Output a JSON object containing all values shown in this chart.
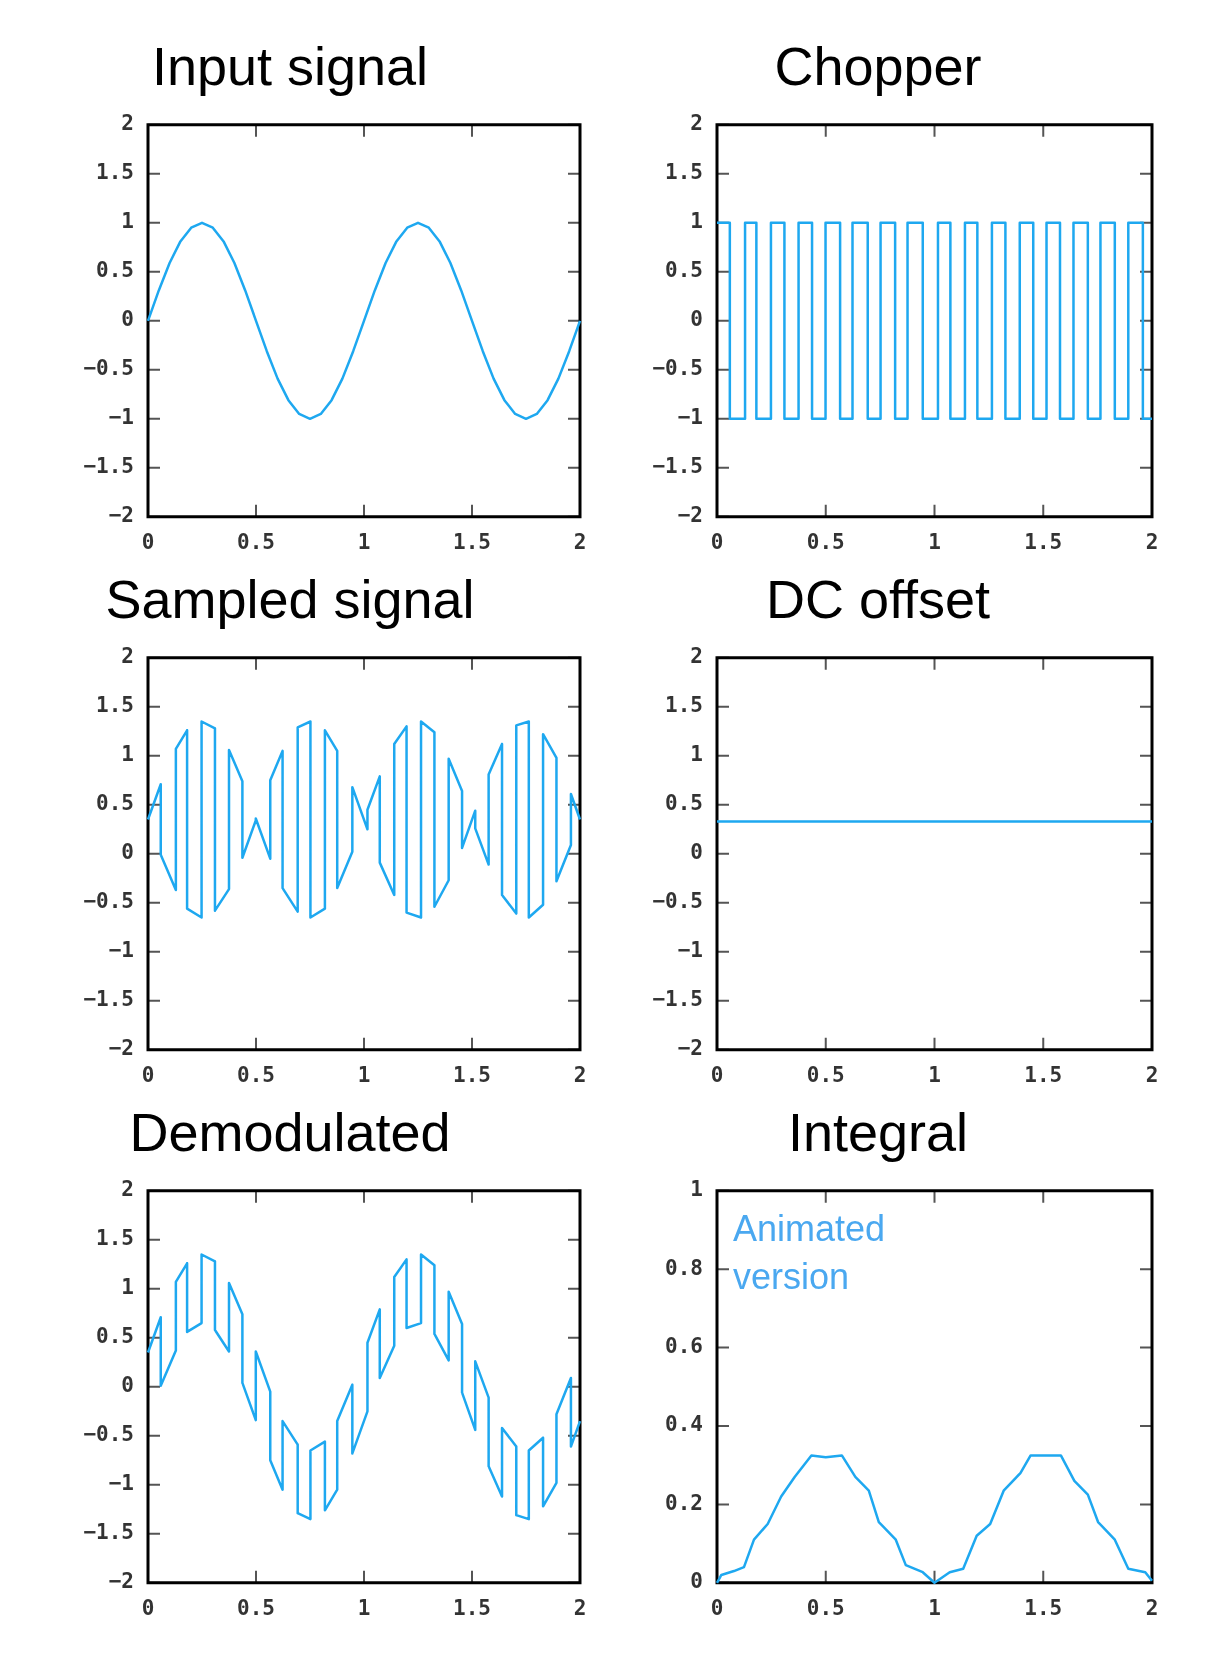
{
  "chart_data": [
    {
      "type": "line",
      "title": "Input signal",
      "color": "#1ea8f0",
      "marker": "none",
      "grid": false,
      "xlim": [
        0,
        2
      ],
      "ylim": [
        -2,
        2
      ],
      "xticks": [
        0,
        0.5,
        1,
        1.5,
        2
      ],
      "yticks": [
        -2,
        -1.5,
        -1,
        -0.5,
        0,
        0.5,
        1,
        1.5,
        2
      ],
      "x": [
        0,
        0.05,
        0.1,
        0.15,
        0.2,
        0.25,
        0.3,
        0.35,
        0.4,
        0.45,
        0.5,
        0.55,
        0.6,
        0.65,
        0.7,
        0.75,
        0.8,
        0.85,
        0.9,
        0.95,
        1,
        1.05,
        1.1,
        1.15,
        1.2,
        1.25,
        1.3,
        1.35,
        1.4,
        1.45,
        1.5,
        1.55,
        1.6,
        1.65,
        1.7,
        1.75,
        1.8,
        1.85,
        1.9,
        1.95,
        2
      ],
      "values": [
        0,
        0.31,
        0.59,
        0.81,
        0.95,
        1,
        0.95,
        0.81,
        0.59,
        0.31,
        0,
        -0.31,
        -0.59,
        -0.81,
        -0.95,
        -1,
        -0.95,
        -0.81,
        -0.59,
        -0.31,
        0,
        0.31,
        0.59,
        0.81,
        0.95,
        1,
        0.95,
        0.81,
        0.59,
        0.31,
        0,
        -0.31,
        -0.59,
        -0.81,
        -0.95,
        -1,
        -0.95,
        -0.81,
        -0.59,
        -0.31,
        0
      ]
    },
    {
      "type": "line",
      "title": "Chopper",
      "color": "#1ea8f0",
      "marker": "none",
      "grid": false,
      "xlim": [
        0,
        2
      ],
      "ylim": [
        -2,
        2
      ],
      "xticks": [
        0,
        0.5,
        1,
        1.5,
        2
      ],
      "yticks": [
        -2,
        -1.5,
        -1,
        -0.5,
        0,
        0.5,
        1,
        1.5,
        2
      ],
      "x": [
        0,
        0.059,
        0.059,
        0.129,
        0.129,
        0.181,
        0.181,
        0.248,
        0.248,
        0.31,
        0.31,
        0.375,
        0.375,
        0.437,
        0.437,
        0.499,
        0.499,
        0.566,
        0.566,
        0.623,
        0.623,
        0.693,
        0.693,
        0.752,
        0.752,
        0.819,
        0.819,
        0.876,
        0.876,
        0.946,
        0.946,
        1.016,
        1.016,
        1.073,
        1.073,
        1.14,
        1.14,
        1.197,
        1.197,
        1.264,
        1.264,
        1.326,
        1.326,
        1.392,
        1.392,
        1.454,
        1.454,
        1.515,
        1.515,
        1.577,
        1.577,
        1.639,
        1.639,
        1.705,
        1.705,
        1.763,
        1.763,
        1.829,
        1.829,
        1.891,
        1.891,
        1.958,
        1.958,
        2
      ],
      "values": [
        1,
        1,
        -1,
        -1,
        1,
        1,
        -1,
        -1,
        1,
        1,
        -1,
        -1,
        1,
        1,
        -1,
        -1,
        1,
        1,
        -1,
        -1,
        1,
        1,
        -1,
        -1,
        1,
        1,
        -1,
        -1,
        1,
        1,
        -1,
        -1,
        1,
        1,
        -1,
        -1,
        1,
        1,
        -1,
        -1,
        1,
        1,
        -1,
        -1,
        1,
        1,
        -1,
        -1,
        1,
        1,
        -1,
        -1,
        1,
        1,
        -1,
        -1,
        1,
        1,
        -1,
        -1,
        1,
        1,
        -1,
        -1
      ]
    },
    {
      "type": "line",
      "title": "Sampled signal",
      "color": "#1ea8f0",
      "marker": "none",
      "grid": false,
      "xlim": [
        0,
        2
      ],
      "ylim": [
        -2,
        2
      ],
      "xticks": [
        0,
        0.5,
        1,
        1.5,
        2
      ],
      "yticks": [
        -2,
        -1.5,
        -1,
        -0.5,
        0,
        0.5,
        1,
        1.5,
        2
      ],
      "x": [
        0,
        0.059,
        0.059,
        0.129,
        0.129,
        0.181,
        0.181,
        0.248,
        0.248,
        0.31,
        0.31,
        0.375,
        0.375,
        0.437,
        0.437,
        0.499,
        0.499,
        0.566,
        0.566,
        0.623,
        0.623,
        0.693,
        0.693,
        0.752,
        0.752,
        0.819,
        0.819,
        0.876,
        0.876,
        0.946,
        0.946,
        1.016,
        1.016,
        1.073,
        1.073,
        1.14,
        1.14,
        1.197,
        1.197,
        1.264,
        1.264,
        1.326,
        1.326,
        1.392,
        1.392,
        1.454,
        1.454,
        1.515,
        1.515,
        1.577,
        1.577,
        1.639,
        1.639,
        1.705,
        1.705,
        1.763,
        1.763,
        1.829,
        1.829,
        1.891,
        1.891,
        1.958,
        1.958,
        2
      ],
      "values": [
        0.35,
        0.71,
        -0.01,
        -0.37,
        1.07,
        1.26,
        -0.56,
        -0.65,
        1.35,
        1.28,
        -0.58,
        -0.36,
        1.06,
        0.74,
        -0.04,
        0.34,
        0.36,
        -0.05,
        0.75,
        1.05,
        -0.35,
        -0.59,
        1.29,
        1.35,
        -0.65,
        -0.56,
        1.26,
        1.05,
        -0.35,
        0.02,
        0.68,
        0.25,
        0.45,
        0.79,
        -0.09,
        -0.42,
        1.12,
        1.3,
        -0.6,
        -0.65,
        1.35,
        1.24,
        -0.54,
        -0.27,
        0.97,
        0.64,
        0.06,
        0.44,
        0.26,
        -0.11,
        0.81,
        1.12,
        -0.42,
        -0.61,
        1.31,
        1.35,
        -0.65,
        -0.52,
        1.22,
        0.98,
        -0.28,
        0.09,
        0.61,
        0.35
      ]
    },
    {
      "type": "line",
      "title": "DC offset",
      "color": "#1ea8f0",
      "marker": "none",
      "grid": false,
      "xlim": [
        0,
        2
      ],
      "ylim": [
        -2,
        2
      ],
      "xticks": [
        0,
        0.5,
        1,
        1.5,
        2
      ],
      "yticks": [
        -2,
        -1.5,
        -1,
        -0.5,
        0,
        0.5,
        1,
        1.5,
        2
      ],
      "x": [
        0,
        2
      ],
      "values": [
        0.33,
        0.33
      ]
    },
    {
      "type": "line",
      "title": "Demodulated",
      "color": "#1ea8f0",
      "marker": "none",
      "grid": false,
      "xlim": [
        0,
        2
      ],
      "ylim": [
        -2,
        2
      ],
      "xticks": [
        0,
        0.5,
        1,
        1.5,
        2
      ],
      "yticks": [
        -2,
        -1.5,
        -1,
        -0.5,
        0,
        0.5,
        1,
        1.5,
        2
      ],
      "x": [
        0,
        0.059,
        0.059,
        0.129,
        0.129,
        0.181,
        0.181,
        0.248,
        0.248,
        0.31,
        0.31,
        0.375,
        0.375,
        0.437,
        0.437,
        0.499,
        0.499,
        0.566,
        0.566,
        0.623,
        0.623,
        0.693,
        0.693,
        0.752,
        0.752,
        0.819,
        0.819,
        0.876,
        0.876,
        0.946,
        0.946,
        1.016,
        1.016,
        1.073,
        1.073,
        1.14,
        1.14,
        1.197,
        1.197,
        1.264,
        1.264,
        1.326,
        1.326,
        1.392,
        1.392,
        1.454,
        1.454,
        1.515,
        1.515,
        1.577,
        1.577,
        1.639,
        1.639,
        1.705,
        1.705,
        1.763,
        1.763,
        1.829,
        1.829,
        1.891,
        1.891,
        1.958,
        1.958,
        2
      ],
      "values": [
        0.35,
        0.71,
        0.01,
        0.37,
        1.07,
        1.26,
        0.56,
        0.65,
        1.35,
        1.28,
        0.58,
        0.36,
        1.06,
        0.74,
        0.04,
        -0.34,
        0.36,
        -0.05,
        -0.75,
        -1.05,
        -0.35,
        -0.59,
        -1.29,
        -1.35,
        -0.65,
        -0.56,
        -1.26,
        -1.05,
        -0.35,
        0.02,
        -0.68,
        -0.25,
        0.45,
        0.79,
        0.09,
        0.42,
        1.12,
        1.3,
        0.6,
        0.65,
        1.35,
        1.24,
        0.54,
        0.27,
        0.97,
        0.64,
        -0.06,
        -0.44,
        0.26,
        -0.11,
        -0.81,
        -1.12,
        -0.42,
        -0.61,
        -1.31,
        -1.35,
        -0.65,
        -0.52,
        -1.22,
        -0.98,
        -0.28,
        0.09,
        -0.61,
        -0.35
      ]
    },
    {
      "type": "line",
      "title": "Integral",
      "color": "#1ea8f0",
      "marker": "none",
      "grid": false,
      "xlim": [
        0,
        2
      ],
      "ylim": [
        0,
        1
      ],
      "xticks": [
        0,
        0.5,
        1,
        1.5,
        2
      ],
      "yticks": [
        0,
        0.2,
        0.4,
        0.6,
        0.8,
        1
      ],
      "annotations": [
        "Animated version"
      ],
      "x": [
        0,
        0.02,
        0.078,
        0.124,
        0.17,
        0.233,
        0.295,
        0.357,
        0.434,
        0.5,
        0.574,
        0.636,
        0.698,
        0.744,
        0.822,
        0.868,
        0.946,
        1,
        1.07,
        1.132,
        1.194,
        1.256,
        1.318,
        1.395,
        1.442,
        1.581,
        1.643,
        1.705,
        1.752,
        1.829,
        1.891,
        1.969,
        2
      ],
      "values": [
        0,
        0.02,
        0.03,
        0.04,
        0.11,
        0.15,
        0.22,
        0.27,
        0.325,
        0.32,
        0.325,
        0.27,
        0.235,
        0.155,
        0.11,
        0.045,
        0.027,
        0,
        0.027,
        0.036,
        0.12,
        0.15,
        0.235,
        0.28,
        0.325,
        0.325,
        0.26,
        0.225,
        0.155,
        0.11,
        0.036,
        0.027,
        0.005
      ]
    }
  ]
}
